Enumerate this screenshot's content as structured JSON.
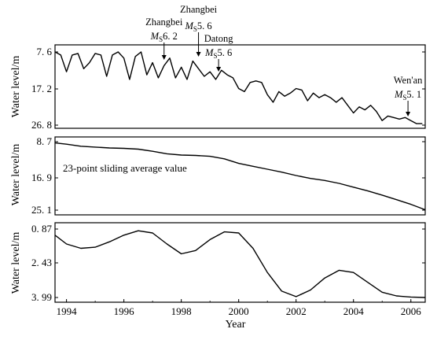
{
  "chart_data": [
    {
      "type": "line",
      "ylabel": "Water level/m",
      "y_ticks": [
        "7. 6",
        "17. 2",
        "26. 8"
      ],
      "ylim": [
        7.6,
        26.8
      ],
      "y_inverted": true,
      "xlim": [
        1993.6,
        2006.5
      ],
      "series": [
        {
          "x": [
            1993.6,
            1993.8,
            1994.0,
            1994.2,
            1994.4,
            1994.6,
            1994.8,
            1995.0,
            1995.2,
            1995.4,
            1995.6,
            1995.8,
            1996.0,
            1996.2,
            1996.4,
            1996.6,
            1996.8,
            1997.0,
            1997.2,
            1997.4,
            1997.6,
            1997.8,
            1998.0,
            1998.2,
            1998.4,
            1998.6,
            1998.8,
            1999.0,
            1999.2,
            1999.4,
            1999.6,
            1999.8,
            2000.0,
            2000.2,
            2000.4,
            2000.6,
            2000.8,
            2001.0,
            2001.2,
            2001.4,
            2001.6,
            2001.8,
            2002.0,
            2002.2,
            2002.4,
            2002.6,
            2002.8,
            2003.0,
            2003.2,
            2003.4,
            2003.6,
            2003.8,
            2004.0,
            2004.2,
            2004.4,
            2004.6,
            2004.8,
            2005.0,
            2005.2,
            2005.4,
            2005.6,
            2005.8,
            2006.0,
            2006.2,
            2006.4
          ],
          "y": [
            7.6,
            8.4,
            12.8,
            8.4,
            8.0,
            12.0,
            10.4,
            8.0,
            8.4,
            14.0,
            8.4,
            7.6,
            9.2,
            14.8,
            8.8,
            7.6,
            13.6,
            10.4,
            14.4,
            11.2,
            9.2,
            14.4,
            11.6,
            14.8,
            10.0,
            12.0,
            14.0,
            12.8,
            14.8,
            12.4,
            13.6,
            14.4,
            17.2,
            18.0,
            15.6,
            15.2,
            15.6,
            18.8,
            20.8,
            18.0,
            19.2,
            18.4,
            17.2,
            17.6,
            20.4,
            18.4,
            19.6,
            18.8,
            19.6,
            20.8,
            19.6,
            21.6,
            23.6,
            22.0,
            22.8,
            21.6,
            23.2,
            25.6,
            24.4,
            24.8,
            25.2,
            24.8,
            25.6,
            26.4,
            26.4
          ]
        }
      ],
      "annotations": [
        {
          "line1": "Zhangbei",
          "line2": "M",
          "sub": "S",
          "mag": "6. 2",
          "x": 1997.4
        },
        {
          "line1": "Zhangbei",
          "line2": "M",
          "sub": "S",
          "mag": "5. 6",
          "x": 1998.6
        },
        {
          "line1": "Datong",
          "line2": "M",
          "sub": "S",
          "mag": "5. 6",
          "x": 1999.3
        },
        {
          "line1": "Wen'an",
          "line2": "M",
          "sub": "S",
          "mag": "5. 1",
          "x": 2005.9
        }
      ]
    },
    {
      "type": "line",
      "ylabel": "Water level/m",
      "y_ticks": [
        "8. 7",
        "16. 9",
        "25. 1"
      ],
      "ylim": [
        8.7,
        25.1
      ],
      "y_inverted": true,
      "xlim": [
        1993.6,
        2006.5
      ],
      "inner_label": "23-point sliding average value",
      "series": [
        {
          "x": [
            1993.6,
            1994.0,
            1994.5,
            1995.0,
            1995.5,
            1996.0,
            1996.5,
            1997.0,
            1997.5,
            1998.0,
            1998.5,
            1999.0,
            1999.5,
            2000.0,
            2000.5,
            2001.0,
            2001.5,
            2002.0,
            2002.5,
            2003.0,
            2003.5,
            2004.0,
            2004.5,
            2005.0,
            2005.5,
            2006.0,
            2006.5
          ],
          "y": [
            9.0,
            9.3,
            9.8,
            10.0,
            10.2,
            10.3,
            10.5,
            11.0,
            11.6,
            11.9,
            12.0,
            12.2,
            12.8,
            13.9,
            14.6,
            15.3,
            16.0,
            16.8,
            17.5,
            18.0,
            18.7,
            19.6,
            20.5,
            21.5,
            22.6,
            23.7,
            25.0
          ]
        }
      ]
    },
    {
      "type": "line",
      "ylabel": "Water level/m",
      "y_ticks": [
        "0. 87",
        "2. 43",
        "3. 99"
      ],
      "ylim": [
        0.87,
        3.99
      ],
      "y_inverted": true,
      "xlim": [
        1993.6,
        2006.5
      ],
      "xlabel": "Year",
      "x_ticks": [
        "1994",
        "1996",
        "1998",
        "2000",
        "2002",
        "2004",
        "2006"
      ],
      "x_tick_values": [
        1994,
        1996,
        1998,
        2000,
        2002,
        2004,
        2006
      ],
      "series": [
        {
          "x": [
            1993.6,
            1994.0,
            1994.5,
            1995.0,
            1995.5,
            1996.0,
            1996.5,
            1997.0,
            1997.5,
            1998.0,
            1998.5,
            1999.0,
            1999.5,
            2000.0,
            2000.5,
            2001.0,
            2001.5,
            2002.0,
            2002.5,
            2003.0,
            2003.5,
            2004.0,
            2004.5,
            2005.0,
            2005.5,
            2006.0,
            2006.5
          ],
          "y": [
            1.15,
            1.55,
            1.75,
            1.7,
            1.45,
            1.15,
            0.95,
            1.05,
            1.55,
            2.0,
            1.85,
            1.35,
            1.0,
            1.05,
            1.75,
            2.85,
            3.7,
            3.95,
            3.65,
            3.1,
            2.75,
            2.85,
            3.3,
            3.75,
            3.92,
            3.97,
            3.99
          ]
        }
      ]
    }
  ]
}
